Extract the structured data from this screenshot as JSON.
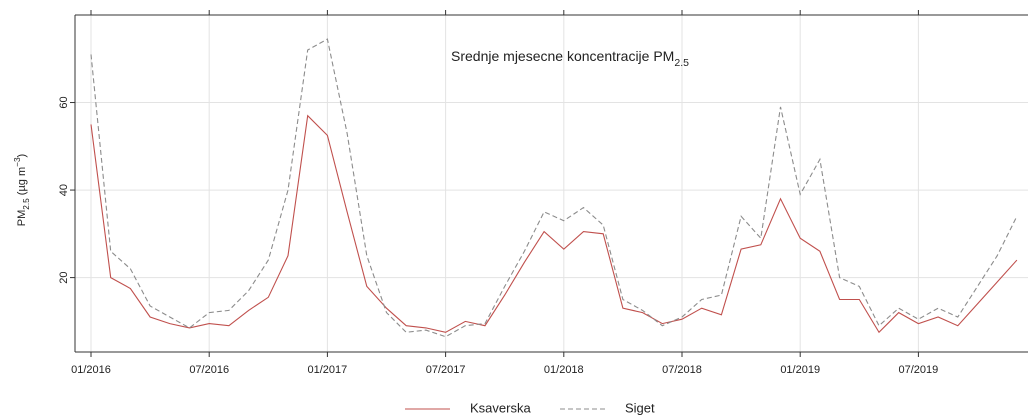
{
  "chart_data": {
    "type": "line",
    "title": [
      {
        "text": "Srednje mjesecne koncentracije PM"
      },
      {
        "text": "2.5",
        "baseline": "sub"
      }
    ],
    "y_label": [
      {
        "text": "PM"
      },
      {
        "text": "2.5",
        "baseline": "sub"
      },
      {
        "text": " (µg m"
      },
      {
        "text": "−3",
        "baseline": "super"
      },
      {
        "text": ")"
      }
    ],
    "categories": [
      "01/2016",
      null,
      null,
      null,
      null,
      null,
      "07/2016",
      null,
      null,
      null,
      null,
      null,
      "01/2017",
      null,
      null,
      null,
      null,
      null,
      "07/2017",
      null,
      null,
      null,
      null,
      null,
      "01/2018",
      null,
      null,
      null,
      null,
      null,
      "07/2018",
      null,
      null,
      null,
      null,
      null,
      "01/2019",
      null,
      null,
      null,
      null,
      null,
      "07/2019",
      null,
      null,
      null,
      null,
      null
    ],
    "series": [
      {
        "name": "Ksaverska",
        "color": "#c0504d",
        "dash": "solid",
        "values": [
          55,
          20,
          17.5,
          11,
          9.5,
          8.5,
          9.5,
          9,
          12.5,
          15.5,
          25,
          57,
          52.5,
          35,
          18,
          13,
          9,
          8.5,
          7.5,
          10,
          9,
          16,
          23.5,
          30.5,
          26.5,
          30.5,
          30,
          13,
          12,
          9.5,
          10.5,
          13,
          11.5,
          26.5,
          27.5,
          38,
          29,
          26,
          15,
          15,
          7.5,
          12,
          9.5,
          11,
          9,
          14,
          19,
          24
        ]
      },
      {
        "name": "Siget",
        "color": "#8c8c8c",
        "dash": "dashed",
        "values": [
          71,
          26,
          22,
          13.5,
          11,
          8.5,
          12,
          12.5,
          17,
          24,
          40,
          72,
          74.5,
          53,
          25,
          12,
          7.5,
          8,
          6.5,
          9,
          9.5,
          18,
          26,
          35,
          33,
          36,
          32,
          15,
          12.5,
          9,
          11,
          15,
          16,
          34,
          29,
          59,
          39,
          47,
          20,
          18,
          9,
          13,
          10.5,
          13,
          11,
          18,
          25,
          34
        ]
      }
    ],
    "ylim": [
      3,
      80
    ],
    "yticks": [
      20,
      40,
      60
    ],
    "grid": true,
    "legend": "bottom"
  }
}
